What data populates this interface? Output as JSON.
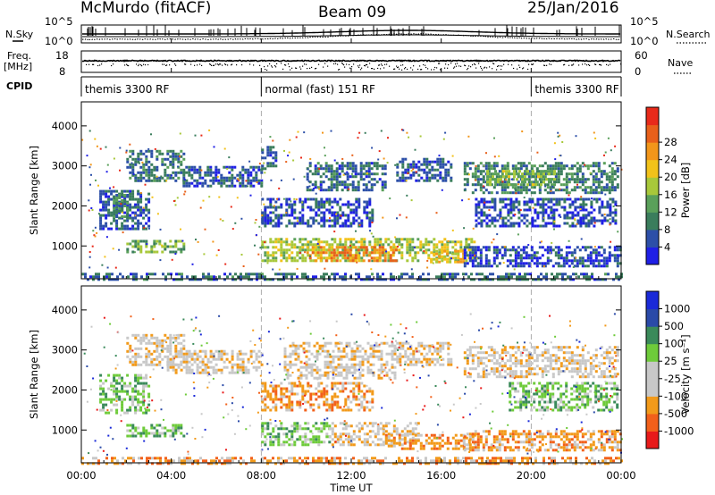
{
  "header": {
    "station": "McMurdo (fitACF)",
    "beam": "Beam 09",
    "date": "25/Jan/2016"
  },
  "aux_panels": {
    "nsky_label": "N.Sky",
    "nsky_scale": [
      "10^5",
      "10^0"
    ],
    "nsearch_label": "N.Search",
    "nsearch_scale": [
      "10^5",
      "10^0"
    ],
    "freq_label": "Freq.",
    "freq_unit": "[MHz]",
    "freq_scale": [
      "18",
      "8"
    ],
    "nave_label": "Nave",
    "nave_scale": [
      "60",
      "0"
    ],
    "cpid_label": "CPID"
  },
  "cpid_segments": [
    {
      "label": "themis 3300 RF",
      "start_hour": 0,
      "end_hour": 8
    },
    {
      "label": "normal (fast) 151 RF",
      "start_hour": 8,
      "end_hour": 20
    },
    {
      "label": "themis 3300 RF",
      "start_hour": 20,
      "end_hour": 24
    }
  ],
  "x_axis": {
    "label": "Time UT",
    "ticks": [
      "00:00",
      "04:00",
      "08:00",
      "12:00",
      "16:00",
      "20:00",
      "00:00"
    ],
    "range_hours": [
      0,
      24
    ]
  },
  "colors": {
    "power": [
      "#1f1fe6",
      "#2c4fa8",
      "#3a7d5c",
      "#5aa05a",
      "#a8c83a",
      "#f2c21a",
      "#f2961a",
      "#e8601a",
      "#e82a1a"
    ],
    "velocity": [
      "#e81a1a",
      "#f2601a",
      "#f29a1a",
      "#c8c8c8",
      "#c8c8c8",
      "#6ecb3a",
      "#3a8a5a",
      "#2a4aa8",
      "#1a2ad8"
    ],
    "ground_scatter": "#8f8f8f"
  },
  "chart_data": [
    {
      "type": "heatmap",
      "title": "",
      "quantity": "Power",
      "ylabel": "Slant Range [km]",
      "xlabel": "",
      "ylim": [
        180,
        4600
      ],
      "yticks": [
        1000,
        2000,
        3000,
        4000
      ],
      "colorbar": {
        "label": "Power [dB]",
        "ticks": [
          "4",
          "8",
          "12",
          "16",
          "20",
          "24",
          "28"
        ],
        "min": 0,
        "max": 32
      },
      "bands": [
        {
          "t0": 2.0,
          "t1": 4.6,
          "r0": 2600,
          "r1": 3400,
          "v": 8
        },
        {
          "t0": 4.5,
          "t1": 8.0,
          "r0": 2500,
          "r1": 3000,
          "v": 6
        },
        {
          "t0": 0.8,
          "t1": 3.0,
          "r0": 1400,
          "r1": 2400,
          "v": 6
        },
        {
          "t0": 1.4,
          "t1": 2.0,
          "r0": 1700,
          "r1": 2300,
          "v": 10
        },
        {
          "t0": 2.0,
          "t1": 4.6,
          "r0": 850,
          "r1": 1150,
          "v": 13
        },
        {
          "t0": 8.0,
          "t1": 17.5,
          "r0": 600,
          "r1": 1200,
          "v": 16
        },
        {
          "t0": 10.0,
          "t1": 14.0,
          "r0": 600,
          "r1": 1000,
          "v": 24
        },
        {
          "t0": 15.5,
          "t1": 17.0,
          "r0": 600,
          "r1": 900,
          "v": 20
        },
        {
          "t0": 8.0,
          "t1": 13.0,
          "r0": 1500,
          "r1": 2200,
          "v": 5
        },
        {
          "t0": 10.0,
          "t1": 13.5,
          "r0": 2400,
          "r1": 3100,
          "v": 7
        },
        {
          "t0": 14.0,
          "t1": 16.5,
          "r0": 2600,
          "r1": 3200,
          "v": 6
        },
        {
          "t0": 17.0,
          "t1": 23.8,
          "r0": 2300,
          "r1": 3100,
          "v": 9
        },
        {
          "t0": 18.0,
          "t1": 21.0,
          "r0": 2500,
          "r1": 2900,
          "v": 14
        },
        {
          "t0": 17.5,
          "t1": 23.8,
          "r0": 1500,
          "r1": 2200,
          "v": 5
        },
        {
          "t0": 17.0,
          "t1": 24.0,
          "r0": 500,
          "r1": 1000,
          "v": 5
        },
        {
          "t0": 8.0,
          "t1": 8.7,
          "r0": 2900,
          "r1": 3500,
          "v": 6
        },
        {
          "t0": 0.0,
          "t1": 24.0,
          "r0": 180,
          "r1": 330,
          "v": 7
        }
      ]
    },
    {
      "type": "heatmap",
      "title": "",
      "quantity": "Velocity",
      "ylabel": "Slant Range [km]",
      "xlabel": "Time UT",
      "ylim": [
        180,
        4600
      ],
      "yticks": [
        1000,
        2000,
        3000,
        4000
      ],
      "colorbar": {
        "label": "Velocity [m s⁻¹]",
        "ticks": [
          "1000",
          "500",
          "100",
          "25",
          "-25",
          "-100",
          "-500",
          "-1000"
        ]
      },
      "bands": [
        {
          "t0": 2.0,
          "t1": 4.6,
          "r0": 2600,
          "r1": 3400,
          "v": 3
        },
        {
          "t0": 3.8,
          "t1": 8.0,
          "r0": 2400,
          "r1": 3000,
          "v": 3
        },
        {
          "t0": 0.8,
          "t1": 3.0,
          "r0": 1400,
          "r1": 2400,
          "v": 5
        },
        {
          "t0": 2.0,
          "t1": 4.6,
          "r0": 850,
          "r1": 1150,
          "v": 5
        },
        {
          "t0": 8.0,
          "t1": 11.0,
          "r0": 600,
          "r1": 1200,
          "v": 5
        },
        {
          "t0": 11.0,
          "t1": 15.0,
          "r0": 600,
          "r1": 1200,
          "v": 3
        },
        {
          "t0": 13.5,
          "t1": 17.5,
          "r0": 550,
          "r1": 900,
          "v": 2
        },
        {
          "t0": 8.0,
          "t1": 13.0,
          "r0": 1500,
          "r1": 2200,
          "v": 2
        },
        {
          "t0": 9.0,
          "t1": 14.0,
          "r0": 2300,
          "r1": 3200,
          "v": 3
        },
        {
          "t0": 14.0,
          "t1": 16.5,
          "r0": 2600,
          "r1": 3200,
          "v": 3
        },
        {
          "t0": 17.0,
          "t1": 23.8,
          "r0": 2300,
          "r1": 3100,
          "v": 3
        },
        {
          "t0": 19.0,
          "t1": 23.8,
          "r0": 1500,
          "r1": 2200,
          "v": 5
        },
        {
          "t0": 17.0,
          "t1": 24.0,
          "r0": 500,
          "r1": 1000,
          "v": 2
        },
        {
          "t0": 0.0,
          "t1": 24.0,
          "r0": 180,
          "r1": 330,
          "v": 2
        }
      ]
    }
  ]
}
